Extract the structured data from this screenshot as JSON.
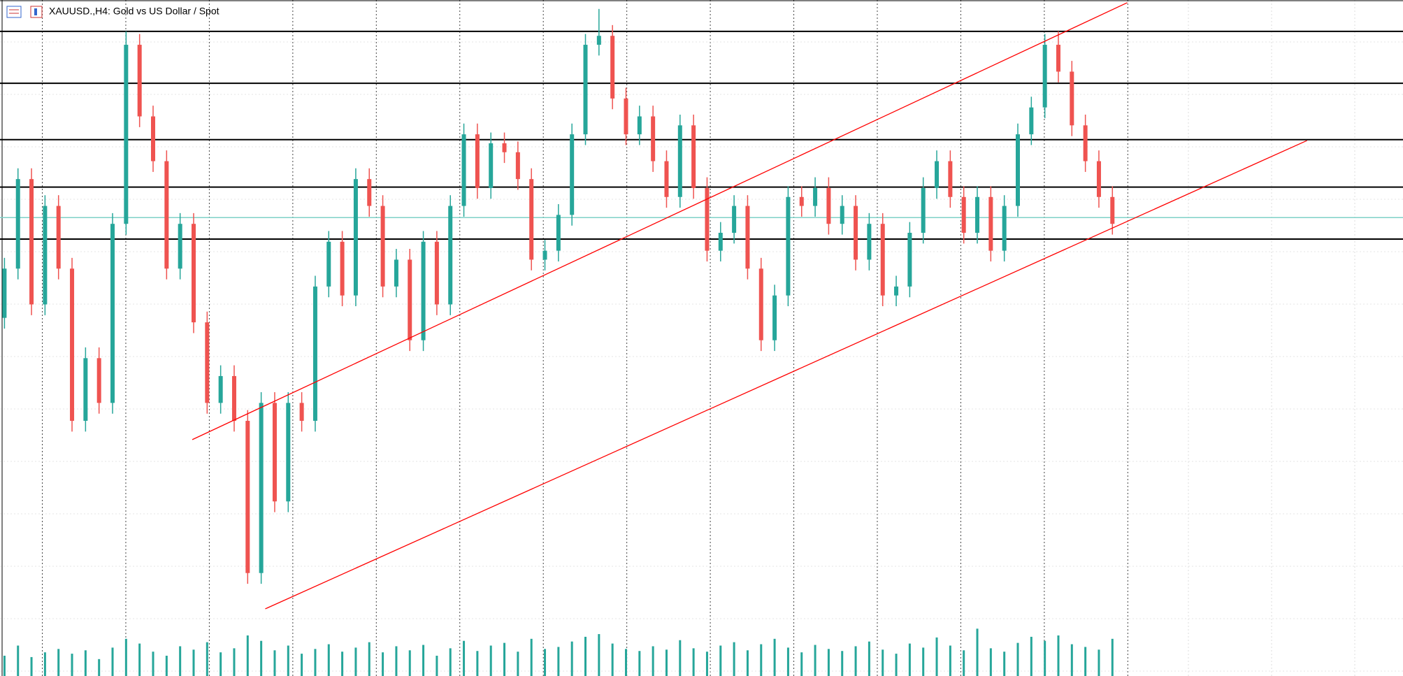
{
  "chart_data": {
    "type": "candlestick",
    "title": "XAUUSD.,H4:  Gold vs US Dollar / Spot",
    "open": [
      400,
      455,
      555,
      415,
      525,
      455,
      285,
      355,
      305,
      505,
      705,
      625,
      575,
      455,
      505,
      395,
      305,
      335,
      285,
      115,
      305,
      195,
      305,
      285,
      435,
      485,
      425,
      555,
      525,
      435,
      465,
      375,
      485,
      415,
      525,
      605,
      545,
      595,
      585,
      555,
      465,
      475,
      515,
      605,
      705,
      715,
      645,
      605,
      625,
      575,
      535,
      615,
      545,
      475,
      495,
      525,
      455,
      375,
      425,
      535,
      525,
      545,
      505,
      525,
      465,
      505,
      425,
      435,
      495,
      545,
      575,
      535,
      495,
      535,
      475,
      525,
      605,
      635,
      705,
      675,
      615,
      575,
      535
    ],
    "high": [
      467,
      567,
      567,
      537,
      537,
      467,
      367,
      367,
      517,
      720,
      717,
      637,
      587,
      517,
      517,
      407,
      347,
      347,
      297,
      317,
      317,
      317,
      317,
      447,
      497,
      497,
      567,
      567,
      537,
      477,
      477,
      497,
      497,
      537,
      617,
      617,
      607,
      607,
      597,
      567,
      487,
      527,
      617,
      717,
      745,
      727,
      657,
      637,
      637,
      587,
      627,
      627,
      557,
      507,
      537,
      537,
      467,
      437,
      547,
      547,
      557,
      557,
      537,
      537,
      517,
      517,
      447,
      507,
      557,
      587,
      587,
      547,
      547,
      547,
      537,
      617,
      647,
      717,
      720,
      687,
      627,
      587,
      547
    ],
    "low": [
      388,
      443,
      403,
      403,
      443,
      273,
      273,
      293,
      293,
      493,
      613,
      563,
      443,
      443,
      383,
      293,
      293,
      273,
      103,
      103,
      183,
      183,
      273,
      273,
      423,
      413,
      413,
      513,
      423,
      423,
      363,
      363,
      403,
      403,
      513,
      533,
      533,
      573,
      543,
      453,
      453,
      463,
      503,
      593,
      693,
      633,
      593,
      593,
      563,
      523,
      523,
      533,
      463,
      463,
      483,
      443,
      363,
      363,
      413,
      513,
      513,
      493,
      493,
      453,
      453,
      413,
      413,
      423,
      483,
      533,
      523,
      483,
      483,
      463,
      463,
      513,
      593,
      623,
      663,
      603,
      563,
      523,
      493
    ],
    "close": [
      455,
      555,
      415,
      525,
      455,
      285,
      355,
      305,
      505,
      705,
      625,
      575,
      455,
      505,
      395,
      305,
      335,
      285,
      115,
      305,
      195,
      305,
      285,
      435,
      485,
      425,
      555,
      525,
      435,
      465,
      375,
      485,
      415,
      525,
      605,
      545,
      595,
      585,
      555,
      465,
      475,
      515,
      605,
      705,
      715,
      645,
      605,
      625,
      575,
      535,
      615,
      545,
      475,
      495,
      525,
      455,
      375,
      425,
      535,
      525,
      545,
      505,
      525,
      465,
      505,
      425,
      435,
      495,
      545,
      575,
      535,
      495,
      535,
      475,
      525,
      605,
      635,
      705,
      675,
      615,
      575,
      535,
      505
    ],
    "volume": [
      30,
      45,
      28,
      35,
      40,
      33,
      38,
      25,
      42,
      55,
      48,
      36,
      30,
      44,
      39,
      50,
      35,
      41,
      60,
      52,
      38,
      45,
      33,
      40,
      47,
      36,
      42,
      50,
      35,
      44,
      38,
      46,
      30,
      41,
      52,
      37,
      45,
      49,
      36,
      55,
      40,
      43,
      51,
      58,
      62,
      48,
      40,
      37,
      44,
      39,
      53,
      41,
      36,
      45,
      50,
      38,
      47,
      55,
      42,
      35,
      46,
      40,
      37,
      44,
      51,
      39,
      33,
      48,
      42,
      57,
      45,
      38,
      70,
      41,
      36,
      49,
      58,
      52,
      60,
      47,
      43,
      39,
      55
    ],
    "ylim": [
      0,
      755
    ],
    "y2lim": [
      0,
      1000
    ],
    "up_color": "#26a69a",
    "down_color": "#ef5350",
    "volume_color": "#26a69a",
    "hlines": [
      720,
      662,
      599,
      546,
      488
    ],
    "hline_color": "#000000",
    "price_line": 512,
    "price_line_color": "#7fd1c7",
    "trendlines": [
      {
        "x": [
          13.9,
          83.1
        ],
        "y": [
          264,
          752
        ]
      },
      {
        "x": [
          19.3,
          96.4
        ],
        "y": [
          75,
          598
        ]
      }
    ],
    "trendline_color": "#ff0000",
    "grid": true
  }
}
